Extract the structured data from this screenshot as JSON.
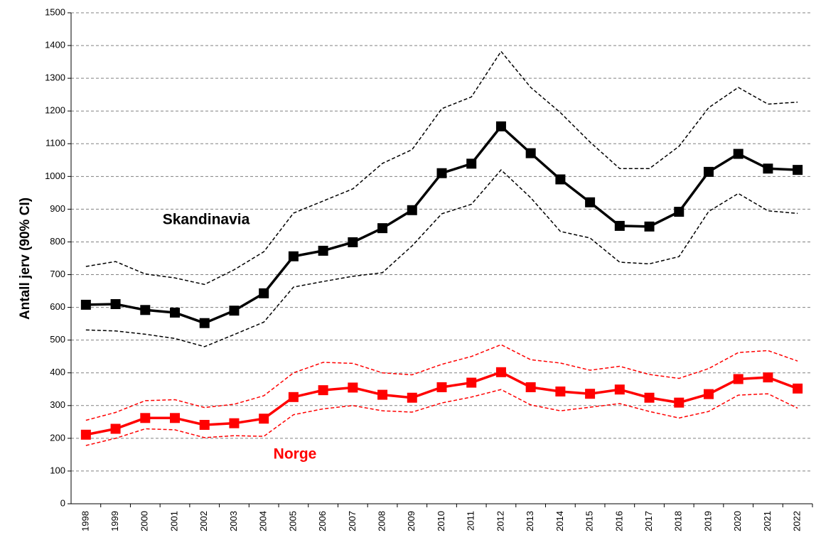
{
  "chart_data": {
    "type": "line",
    "y_label": "Antall jerv (90% CI)",
    "categories": [
      "1998",
      "1999",
      "2000",
      "2001",
      "2002",
      "2003",
      "2004",
      "2005",
      "2006",
      "2007",
      "2008",
      "2009",
      "2010",
      "2011",
      "2012",
      "2013",
      "2014",
      "2015",
      "2016",
      "2017",
      "2018",
      "2019",
      "2020",
      "2021",
      "2022"
    ],
    "series": [
      {
        "name": "Skandinavia",
        "color": "#000000",
        "values": [
          608,
          610,
          592,
          584,
          552,
          590,
          643,
          756,
          773,
          799,
          842,
          897,
          1010,
          1039,
          1153,
          1071,
          991,
          921,
          849,
          847,
          892,
          1014,
          1069,
          1024,
          1020
        ],
        "upper": [
          725,
          740,
          702,
          690,
          670,
          715,
          770,
          888,
          925,
          962,
          1040,
          1082,
          1207,
          1243,
          1382,
          1272,
          1195,
          1105,
          1024,
          1024,
          1092,
          1210,
          1272,
          1221,
          1227
        ],
        "lower": [
          531,
          528,
          518,
          505,
          480,
          517,
          555,
          662,
          679,
          695,
          706,
          788,
          886,
          915,
          1020,
          935,
          832,
          812,
          738,
          733,
          755,
          893,
          948,
          895,
          887
        ]
      },
      {
        "name": "Norge",
        "color": "#ff0000",
        "values": [
          211,
          229,
          262,
          262,
          241,
          246,
          260,
          326,
          347,
          355,
          333,
          324,
          356,
          370,
          402,
          356,
          343,
          336,
          349,
          324,
          309,
          335,
          381,
          386,
          352
        ],
        "upper": [
          255,
          279,
          315,
          318,
          294,
          304,
          330,
          400,
          432,
          429,
          400,
          394,
          426,
          450,
          486,
          440,
          430,
          408,
          420,
          395,
          383,
          413,
          462,
          468,
          436
        ],
        "lower": [
          178,
          200,
          229,
          226,
          202,
          208,
          206,
          272,
          290,
          300,
          284,
          280,
          308,
          326,
          349,
          302,
          284,
          295,
          306,
          282,
          262,
          282,
          332,
          336,
          292
        ]
      }
    ],
    "ylim": [
      0,
      1500
    ],
    "yticks": [
      0,
      100,
      200,
      300,
      400,
      500,
      600,
      700,
      800,
      900,
      1000,
      1100,
      1200,
      1300,
      1400,
      1500
    ],
    "grid": true
  }
}
